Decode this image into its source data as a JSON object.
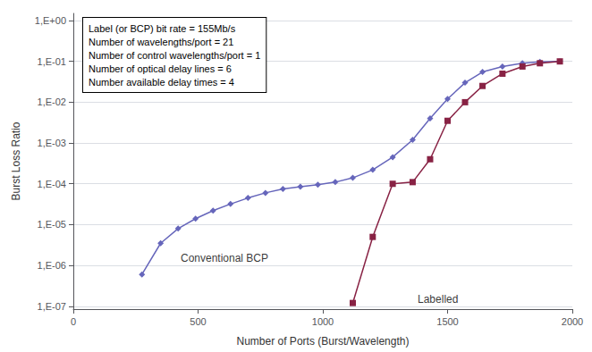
{
  "chart_data": {
    "type": "line",
    "log": "y",
    "grid": true,
    "xlabel": "Number of Ports (Burst/Wavelength)",
    "ylabel": "Burst Loss Ratio",
    "xlim": [
      0,
      2000
    ],
    "xticks": [
      0,
      500,
      1000,
      1500,
      2000
    ],
    "ylim": [
      8.5e-08,
      1.5
    ],
    "yticks": [
      {
        "value": 1.0,
        "label": "1,E+00"
      },
      {
        "value": 0.1,
        "label": "1,E-01"
      },
      {
        "value": 0.01,
        "label": "1,E-02"
      },
      {
        "value": 0.001,
        "label": "1,E-03"
      },
      {
        "value": 0.0001,
        "label": "1,E-04"
      },
      {
        "value": 1e-05,
        "label": "1,E-05"
      },
      {
        "value": 1e-06,
        "label": "1,E-06"
      },
      {
        "value": 1e-07,
        "label": "1,E-07"
      }
    ],
    "series": [
      {
        "color": "#6666bb",
        "marker": "diamond",
        "line_style": "solid",
        "x": [
          275,
          350,
          420,
          490,
          560,
          630,
          700,
          770,
          840,
          910,
          980,
          1050,
          1120,
          1200,
          1280,
          1360,
          1430,
          1500,
          1570,
          1640,
          1720,
          1800,
          1870,
          1950
        ],
        "values": [
          6e-07,
          3.5e-06,
          8e-06,
          1.4e-05,
          2.2e-05,
          3.2e-05,
          4.5e-05,
          6e-05,
          7.5e-05,
          8.5e-05,
          9.5e-05,
          0.00011,
          0.00014,
          0.00022,
          0.00045,
          0.0012,
          0.004,
          0.012,
          0.03,
          0.055,
          0.075,
          0.09,
          0.097,
          0.1
        ]
      },
      {
        "color": "#882244",
        "marker": "square",
        "line_style": "solid",
        "x": [
          1120,
          1200,
          1280,
          1360,
          1430,
          1500,
          1570,
          1640,
          1720,
          1800,
          1870,
          1950
        ],
        "values": [
          1.2e-07,
          5e-06,
          0.0001,
          0.00011,
          0.0004,
          0.0035,
          0.01,
          0.025,
          0.05,
          0.075,
          0.09,
          0.1
        ]
      }
    ],
    "annotations": [
      {
        "text": "Conventional BCP",
        "x": 430,
        "y": 1.5e-06
      },
      {
        "text": "Labelled",
        "x": 1380,
        "y": 1.5e-07
      }
    ],
    "text_box": "Label (or BCP) bit rate = 155Mb/s\nNumber of wavelengths/port = 21\nNumber of control wavelengths/port = 1\nNumber of optical delay lines = 6\nNumber available delay times = 4"
  }
}
